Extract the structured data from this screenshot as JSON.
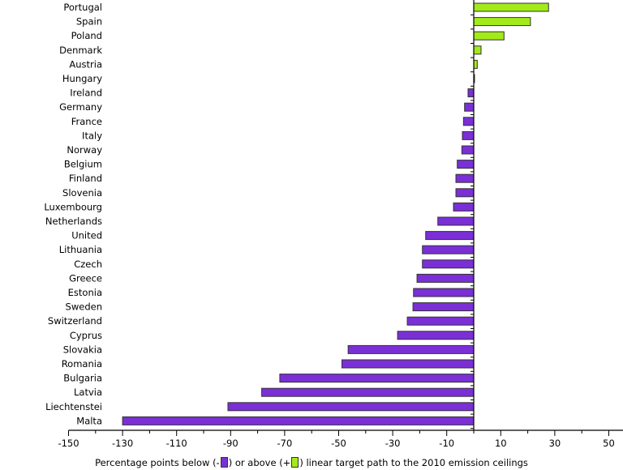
{
  "chart_data": {
    "type": "bar",
    "orientation": "horizontal",
    "categories": [
      "Portugal",
      "Spain",
      "Poland",
      "Denmark",
      "Austria",
      "Hungary",
      "Ireland",
      "Germany",
      "France",
      "Italy",
      "Norway",
      "Belgium",
      "Finland",
      "Slovenia",
      "Luxembourg",
      "Netherlands",
      "United",
      "Lithuania",
      "Czech",
      "Greece",
      "Estonia",
      "Sweden",
      "Switzerland",
      "Cyprus",
      "Slovakia",
      "Romania",
      "Bulgaria",
      "Latvia",
      "Liechtenstei",
      "Malta"
    ],
    "values": [
      27.7,
      21,
      11.2,
      2.7,
      1.3,
      0.3,
      -2.1,
      -3.4,
      -3.8,
      -4.2,
      -4.4,
      -6.1,
      -6.6,
      -6.6,
      -7.5,
      -13.3,
      -17.8,
      -19,
      -19,
      -21,
      -22.3,
      -22.5,
      -24.6,
      -28.2,
      -46.5,
      -48.8,
      -71.8,
      -78.5,
      -91,
      -130
    ],
    "xlim": [
      -150,
      55
    ],
    "xticks": [
      -150,
      -130,
      -110,
      -90,
      -70,
      -50,
      -30,
      -10,
      10,
      30,
      50
    ],
    "title": "",
    "xlabel": "",
    "ylabel": "",
    "grid": false,
    "colors": {
      "negative": "#7b2fd6",
      "positive": "#a3ea1a",
      "border": "#333333"
    },
    "legend": {
      "placement": "bottom",
      "text_before": "Percentage points below (-",
      "text_middle": ") or above (+",
      "text_after": ") linear target path to the 2010 emission ceilings"
    }
  }
}
